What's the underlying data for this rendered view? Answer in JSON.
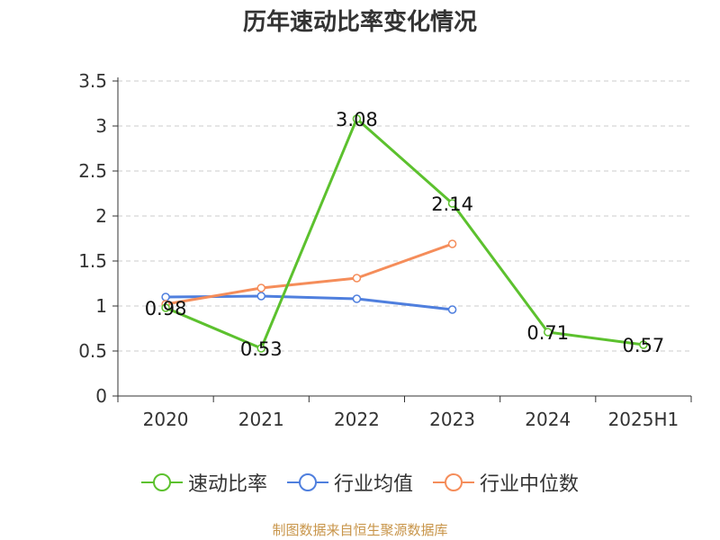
{
  "chart_data": {
    "type": "line",
    "title": "历年速动比率变化情况",
    "categories": [
      "2020",
      "2021",
      "2022",
      "2023",
      "2024",
      "2025H1"
    ],
    "y_ticks": [
      "0",
      "0.5",
      "1",
      "1.5",
      "2",
      "2.5",
      "3",
      "3.5"
    ],
    "ylim": [
      0,
      3.5
    ],
    "grid": true,
    "legend_position": "bottom",
    "series": [
      {
        "name": "速动比率",
        "color": "#5cc12e",
        "values": [
          0.98,
          0.53,
          3.08,
          2.14,
          0.71,
          0.57
        ],
        "labels": [
          "0.98",
          "0.53",
          "3.08",
          "2.14",
          "0.71",
          "0.57"
        ]
      },
      {
        "name": "行业均值",
        "color": "#4f7fde",
        "values": [
          1.1,
          1.11,
          1.08,
          0.96,
          null,
          null
        ]
      },
      {
        "name": "行业中位数",
        "color": "#f58d5a",
        "values": [
          1.02,
          1.2,
          1.31,
          1.69,
          null,
          null
        ]
      }
    ]
  },
  "source": "制图数据来自恒生聚源数据库"
}
